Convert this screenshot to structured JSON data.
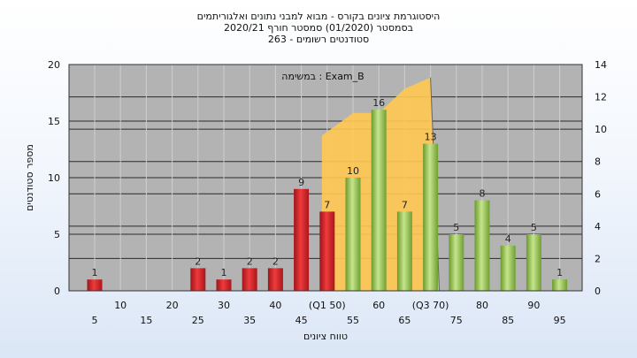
{
  "chart_data": {
    "type": "bar",
    "title_lines": [
      "היסטוגרמת ציונים בקורס - מבוא למבני נתונים ואלגוריתמים",
      "בסמסטר  (01/2020)  סמסטר חורף  2020/21",
      "סטודנטים רשומים - 263"
    ],
    "annotation": "במשימה : Exam_B",
    "xlabel": "טווח ציונים",
    "ylabel": "מספר סטודנטים",
    "x_ticks_lower": [
      "5",
      "15",
      "25",
      "35",
      "45",
      "55",
      "65",
      "75",
      "85",
      "95"
    ],
    "x_ticks_upper": [
      "10",
      "20",
      "30",
      "40",
      "(Q1 50)",
      "60",
      "(Q3 70)",
      "80",
      "90"
    ],
    "categories": [
      "5",
      "10",
      "15",
      "20",
      "25",
      "30",
      "35",
      "40",
      "45",
      "50",
      "55",
      "60",
      "65",
      "70",
      "75",
      "80",
      "85",
      "90",
      "95"
    ],
    "values": [
      1,
      0,
      0,
      0,
      2,
      1,
      2,
      2,
      9,
      7,
      10,
      16,
      7,
      13,
      5,
      8,
      4,
      5,
      1
    ],
    "data_labels": [
      "1",
      "",
      "",
      "",
      "2",
      "1",
      "2",
      "2",
      "9",
      "7",
      "10",
      "16",
      "7",
      "13",
      "5",
      "8",
      "4",
      "5",
      "1"
    ],
    "bar_colors": [
      "red",
      "",
      "",
      "",
      "red",
      "red",
      "red",
      "red",
      "red",
      "red",
      "green",
      "green",
      "green",
      "green",
      "green",
      "green",
      "green",
      "green",
      "green"
    ],
    "left_axis": {
      "ylim": [
        0,
        20
      ],
      "ticks": [
        "0",
        "5",
        "10",
        "15",
        "20"
      ]
    },
    "right_axis": {
      "ylim": [
        0,
        14
      ],
      "ticks": [
        "0",
        "2",
        "4",
        "6",
        "8",
        "10",
        "12",
        "14"
      ]
    },
    "band": {
      "x": [
        "50",
        "55",
        "60",
        "65",
        "70"
      ],
      "y": [
        9.6,
        11,
        11,
        12.5,
        13.2
      ]
    },
    "colors": {
      "red_bar": "#d8262a",
      "green_bar": "#8fbf45",
      "band_fill": "#ffc850",
      "plot_bg": "#b3b3b3",
      "grid": "#2a2a2a"
    },
    "grid": true
  }
}
